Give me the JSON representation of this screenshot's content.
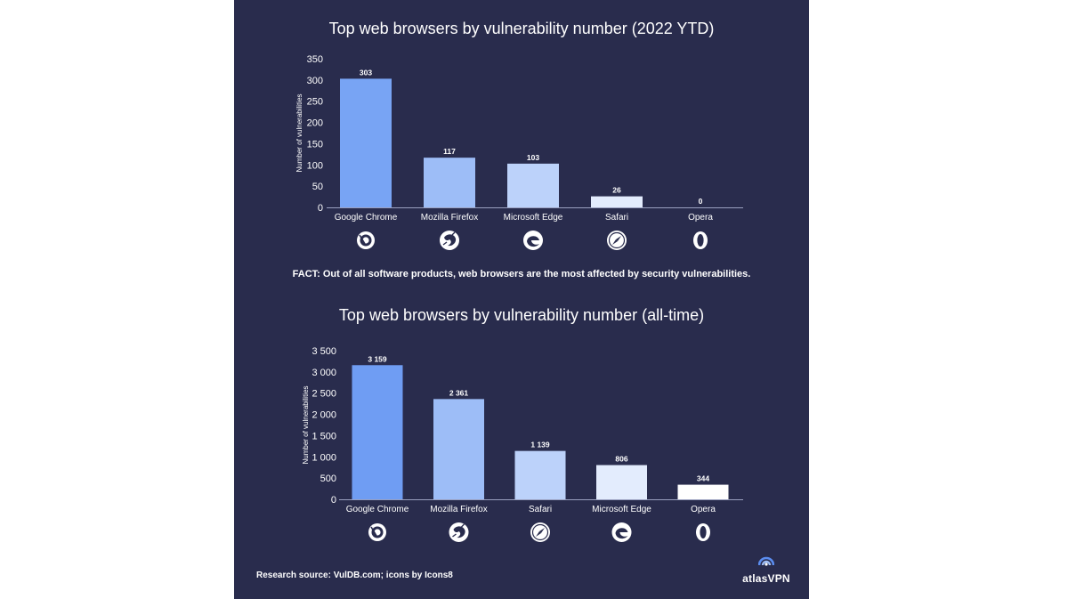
{
  "charts": [
    {
      "title": "Top web browsers by vulnerability number (2022 YTD)",
      "ylabel": "Number of vulnerabilities"
    },
    {
      "title": "Top web browsers by vulnerability number (all-time)",
      "ylabel": "Number of vulnerabilities"
    }
  ],
  "chart_data": [
    {
      "type": "bar",
      "title": "Top web browsers by vulnerability number (2022 YTD)",
      "xlabel": "",
      "ylabel": "Number of vulnerabilities",
      "categories": [
        "Google Chrome",
        "Mozilla Firefox",
        "Microsoft Edge",
        "Safari",
        "Opera"
      ],
      "values": [
        303,
        117,
        103,
        26,
        0
      ],
      "value_labels": [
        "303",
        "117",
        "103",
        "26",
        "0"
      ],
      "icons": [
        "chrome-icon",
        "firefox-icon",
        "edge-icon",
        "safari-icon",
        "opera-icon"
      ],
      "bar_colors": [
        "#78a4f4",
        "#9dbdf7",
        "#bcd2fa",
        "#e3ecfd",
        "#ffffff"
      ],
      "ylim": [
        0,
        350
      ],
      "yticks": [
        0,
        50,
        100,
        150,
        200,
        250,
        300,
        350
      ],
      "ytick_labels": [
        "0",
        "50",
        "100",
        "150",
        "200",
        "250",
        "300",
        "350"
      ],
      "grid": false
    },
    {
      "type": "bar",
      "title": "Top web browsers by vulnerability number (all-time)",
      "xlabel": "",
      "ylabel": "Number of vulnerabilities",
      "categories": [
        "Google Chrome",
        "Mozilla Firefox",
        "Safari",
        "Microsoft Edge",
        "Opera"
      ],
      "values": [
        3159,
        2361,
        1139,
        806,
        344
      ],
      "value_labels": [
        "3 159",
        "2 361",
        "1 139",
        "806",
        "344"
      ],
      "icons": [
        "chrome-icon",
        "firefox-icon",
        "safari-icon",
        "edge-icon",
        "opera-icon"
      ],
      "bar_colors": [
        "#6f9df3",
        "#9dbdf7",
        "#bcd2fa",
        "#e3ecfd",
        "#ffffff"
      ],
      "ylim": [
        0,
        3500
      ],
      "yticks": [
        0,
        500,
        1000,
        1500,
        2000,
        2500,
        3000,
        3500
      ],
      "ytick_labels": [
        "0",
        "500",
        "1 000",
        "1 500",
        "2 000",
        "2 500",
        "3 000",
        "3 500"
      ],
      "grid": false
    }
  ],
  "fact": "FACT: Out of all software products, web browsers are the most affected by security vulnerabilities.",
  "footer": {
    "source": "Research source: VulDB.com; icons by Icons8",
    "brand": "atlasVPN"
  }
}
